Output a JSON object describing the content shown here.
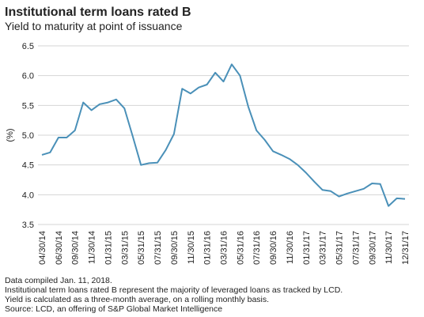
{
  "chart_data": {
    "type": "line",
    "title": "Institutional term loans rated B",
    "subtitle": "Yield to maturity at point of issuance",
    "y_label": "(%)",
    "categories": [
      "04/30/14",
      null,
      "06/30/14",
      null,
      "09/30/14",
      null,
      "11/30/14",
      null,
      "01/31/15",
      null,
      "03/31/15",
      null,
      "05/31/15",
      null,
      "07/31/15",
      null,
      "09/30/15",
      null,
      "11/30/15",
      null,
      "01/31/16",
      null,
      "03/31/16",
      null,
      "05/31/16",
      null,
      "07/31/16",
      null,
      "09/30/16",
      null,
      "11/30/16",
      null,
      "01/31/17",
      null,
      "03/31/17",
      null,
      "05/31/17",
      null,
      "07/31/17",
      null,
      "09/30/17",
      null,
      "11/30/17",
      null,
      "12/31/17"
    ],
    "series": [
      {
        "name": "Yield",
        "color": "#4a90b8",
        "values": [
          4.67,
          4.71,
          4.96,
          4.96,
          5.08,
          5.55,
          5.42,
          5.52,
          5.55,
          5.6,
          5.45,
          4.98,
          4.5,
          4.53,
          4.54,
          4.75,
          5.02,
          5.78,
          5.7,
          5.8,
          5.85,
          6.05,
          5.9,
          6.19,
          6.0,
          5.48,
          5.08,
          4.92,
          4.73,
          4.67,
          4.6,
          4.5,
          4.37,
          4.22,
          4.08,
          4.06,
          3.97,
          4.02,
          4.06,
          4.1,
          4.19,
          4.18,
          3.81,
          3.94,
          3.93
        ]
      }
    ],
    "ylim": [
      3.5,
      6.5
    ],
    "yticks": [
      3.5,
      {
        "value": 4,
        "label": "4.0"
      },
      4.5,
      {
        "value": 5,
        "label": "5.0"
      },
      5.5,
      {
        "value": 6,
        "label": "6.0"
      },
      6.5
    ],
    "grid": true,
    "notes": [
      "Data compiled Jan. 11, 2018.",
      "Institutional term loans rated B represent the majority of leveraged loans as tracked by LCD.",
      "Yield is calculated as a three-month average, on a rolling monthly basis.",
      "Source: LCD, an offering of S&P Global Market Intelligence"
    ]
  }
}
